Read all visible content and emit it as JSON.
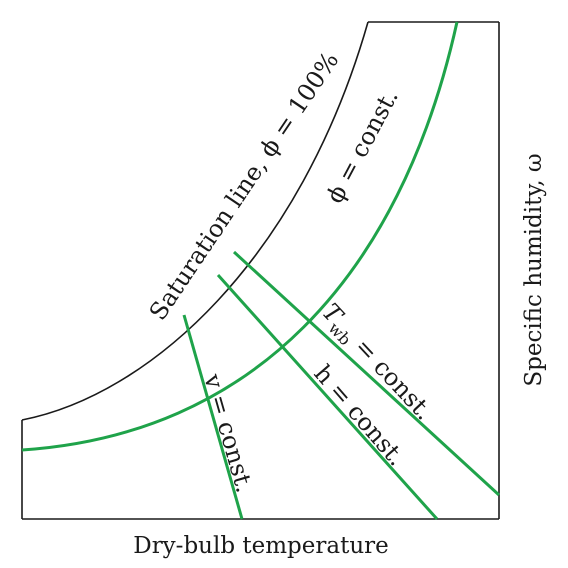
{
  "diagram": {
    "colors": {
      "outline": "#1a1a1a",
      "property_lines": "#1fa34a"
    },
    "labels": {
      "saturation_line": "Saturation line, ϕ = 100%",
      "phi_const": "ϕ = const.",
      "twb_const_main": "T",
      "twb_const_sub": "wb",
      "twb_const_rest": " = const.",
      "h_const": "h = const.",
      "v_const": "v = const.",
      "x_axis": "Dry-bulb temperature",
      "y_axis": "Specific humidity, ω"
    }
  }
}
